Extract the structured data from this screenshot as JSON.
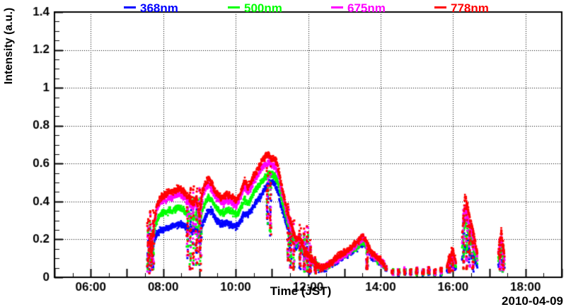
{
  "date_label": "2010-04-09",
  "legend": [
    {
      "label": "368nm",
      "color": "#0000ff"
    },
    {
      "label": "500nm",
      "color": "#00ff00"
    },
    {
      "label": "675nm",
      "color": "#ff00ff"
    },
    {
      "label": "778nm",
      "color": "#ff0000"
    }
  ],
  "axes": {
    "x_label": "Time (JST)",
    "y_label": "Intensity (a.u.)",
    "x_tick_labels": [
      "06:00",
      "08:00",
      "10:00",
      "12:00",
      "14:00",
      "16:00",
      "18:00"
    ],
    "x_tick_hours": [
      6,
      8,
      10,
      12,
      14,
      16,
      18
    ],
    "y_tick_labels": [
      "0",
      "0.2",
      "0.4",
      "0.6",
      "0.8",
      "1",
      "1.2",
      "1.4"
    ],
    "y_tick_values": [
      0,
      0.2,
      0.4,
      0.6,
      0.8,
      1,
      1.2,
      1.4
    ],
    "grid_style": "dotted",
    "axis_color": "#000000"
  },
  "chart_data": {
    "type": "scatter",
    "title": "",
    "xlabel": "Time (JST)",
    "ylabel": "Intensity (a.u.)",
    "x_unit": "decimal hours JST",
    "xlim_hours": [
      5,
      19
    ],
    "ylim": [
      0,
      1.4
    ],
    "x": [
      7.58,
      7.63,
      7.68,
      7.73,
      7.78,
      7.83,
      7.88,
      7.93,
      8.0,
      8.08,
      8.17,
      8.25,
      8.33,
      8.42,
      8.5,
      8.58,
      8.67,
      8.75,
      8.83,
      8.92,
      9.0,
      9.08,
      9.17,
      9.25,
      9.33,
      9.42,
      9.5,
      9.58,
      9.67,
      9.75,
      9.83,
      9.92,
      10.0,
      10.08,
      10.17,
      10.25,
      10.33,
      10.42,
      10.5,
      10.58,
      10.67,
      10.75,
      10.83,
      10.92,
      11.0,
      11.08,
      11.17,
      11.25,
      11.33,
      11.42,
      11.5,
      11.58,
      11.67,
      11.75,
      11.83,
      11.92,
      12.0,
      12.08,
      12.17,
      12.25,
      12.33,
      12.42,
      12.5,
      12.58,
      12.67,
      12.75,
      12.83,
      12.92,
      13.0,
      13.08,
      13.17,
      13.25,
      13.33,
      13.42,
      13.5,
      13.58,
      13.67,
      13.75,
      13.83,
      13.92,
      14.0,
      14.08,
      14.17,
      14.33,
      14.5,
      14.67,
      14.83,
      15.0,
      15.17,
      15.33,
      15.5,
      15.67,
      15.83,
      15.92,
      16.0,
      16.08,
      16.25,
      16.33,
      16.42,
      16.5,
      16.58,
      16.67,
      17.25,
      17.33,
      17.42
    ],
    "series": [
      {
        "name": "368nm",
        "color": "#0000ff",
        "column_scale": 0.75,
        "values": [
          0.08,
          0.14,
          0.09,
          0.17,
          0.21,
          0.23,
          0.24,
          0.25,
          0.25,
          0.26,
          0.26,
          0.27,
          0.27,
          0.28,
          0.28,
          0.27,
          0.26,
          0.25,
          0.24,
          0.26,
          0.2,
          0.28,
          0.32,
          0.36,
          0.35,
          0.32,
          0.3,
          0.28,
          0.28,
          0.29,
          0.28,
          0.27,
          0.27,
          0.28,
          0.31,
          0.34,
          0.33,
          0.35,
          0.38,
          0.4,
          0.42,
          0.45,
          0.47,
          0.5,
          0.5,
          0.49,
          0.45,
          0.38,
          0.33,
          0.27,
          0.23,
          0.2,
          0.16,
          0.17,
          0.14,
          0.11,
          0.1,
          0.08,
          0.07,
          0.05,
          0.04,
          0.04,
          0.05,
          0.06,
          0.07,
          0.08,
          0.09,
          0.1,
          0.11,
          0.12,
          0.13,
          0.14,
          0.15,
          0.17,
          0.18,
          0.17,
          0.14,
          0.11,
          0.1,
          0.09,
          0.07,
          0.06,
          0.04,
          0.03,
          0.03,
          0.04,
          0.03,
          0.04,
          0.03,
          0.04,
          0.03,
          0.03,
          0.04,
          0.06,
          0.07,
          0.05,
          0.1,
          0.16,
          0.14,
          0.12,
          0.1,
          0.06,
          0.06,
          0.08,
          0.05
        ]
      },
      {
        "name": "500nm",
        "color": "#00ff00",
        "column_scale": 0.85,
        "values": [
          0.09,
          0.17,
          0.1,
          0.21,
          0.27,
          0.3,
          0.32,
          0.33,
          0.34,
          0.34,
          0.35,
          0.35,
          0.36,
          0.37,
          0.36,
          0.35,
          0.34,
          0.32,
          0.31,
          0.33,
          0.26,
          0.36,
          0.4,
          0.42,
          0.41,
          0.38,
          0.36,
          0.34,
          0.34,
          0.35,
          0.35,
          0.34,
          0.33,
          0.34,
          0.38,
          0.41,
          0.39,
          0.41,
          0.45,
          0.47,
          0.49,
          0.51,
          0.53,
          0.55,
          0.54,
          0.54,
          0.5,
          0.43,
          0.37,
          0.3,
          0.26,
          0.22,
          0.18,
          0.19,
          0.16,
          0.12,
          0.11,
          0.09,
          0.07,
          0.06,
          0.05,
          0.05,
          0.05,
          0.06,
          0.07,
          0.09,
          0.1,
          0.11,
          0.12,
          0.13,
          0.14,
          0.15,
          0.16,
          0.18,
          0.19,
          0.18,
          0.15,
          0.12,
          0.11,
          0.09,
          0.08,
          0.06,
          0.05,
          0.04,
          0.04,
          0.04,
          0.04,
          0.04,
          0.04,
          0.04,
          0.03,
          0.04,
          0.05,
          0.08,
          0.1,
          0.06,
          0.15,
          0.29,
          0.24,
          0.19,
          0.15,
          0.08,
          0.1,
          0.15,
          0.08
        ]
      },
      {
        "name": "675nm",
        "color": "#ff00ff",
        "column_scale": 0.95,
        "values": [
          0.1,
          0.19,
          0.11,
          0.24,
          0.31,
          0.36,
          0.38,
          0.4,
          0.41,
          0.41,
          0.42,
          0.42,
          0.43,
          0.44,
          0.43,
          0.42,
          0.4,
          0.39,
          0.37,
          0.4,
          0.3,
          0.42,
          0.47,
          0.49,
          0.47,
          0.43,
          0.41,
          0.4,
          0.39,
          0.41,
          0.4,
          0.39,
          0.38,
          0.4,
          0.44,
          0.48,
          0.45,
          0.47,
          0.51,
          0.53,
          0.56,
          0.58,
          0.6,
          0.61,
          0.59,
          0.59,
          0.55,
          0.47,
          0.41,
          0.33,
          0.28,
          0.24,
          0.19,
          0.21,
          0.17,
          0.13,
          0.11,
          0.09,
          0.08,
          0.06,
          0.05,
          0.05,
          0.06,
          0.07,
          0.08,
          0.09,
          0.1,
          0.11,
          0.12,
          0.13,
          0.14,
          0.16,
          0.17,
          0.19,
          0.21,
          0.19,
          0.15,
          0.12,
          0.11,
          0.1,
          0.08,
          0.07,
          0.05,
          0.04,
          0.04,
          0.05,
          0.04,
          0.05,
          0.04,
          0.05,
          0.04,
          0.04,
          0.05,
          0.09,
          0.12,
          0.07,
          0.19,
          0.37,
          0.3,
          0.24,
          0.19,
          0.1,
          0.12,
          0.2,
          0.1
        ]
      },
      {
        "name": "778nm",
        "color": "#ff0000",
        "column_scale": 1.0,
        "values": [
          0.1,
          0.2,
          0.12,
          0.25,
          0.33,
          0.38,
          0.4,
          0.42,
          0.43,
          0.44,
          0.45,
          0.45,
          0.46,
          0.47,
          0.46,
          0.45,
          0.43,
          0.41,
          0.39,
          0.42,
          0.32,
          0.45,
          0.5,
          0.52,
          0.5,
          0.46,
          0.44,
          0.42,
          0.42,
          0.44,
          0.43,
          0.42,
          0.41,
          0.42,
          0.47,
          0.51,
          0.48,
          0.5,
          0.54,
          0.56,
          0.59,
          0.62,
          0.64,
          0.65,
          0.62,
          0.63,
          0.58,
          0.5,
          0.43,
          0.35,
          0.3,
          0.25,
          0.2,
          0.22,
          0.18,
          0.14,
          0.12,
          0.1,
          0.08,
          0.06,
          0.05,
          0.05,
          0.06,
          0.07,
          0.08,
          0.1,
          0.11,
          0.12,
          0.13,
          0.14,
          0.15,
          0.17,
          0.18,
          0.2,
          0.22,
          0.2,
          0.16,
          0.13,
          0.12,
          0.1,
          0.09,
          0.07,
          0.05,
          0.04,
          0.04,
          0.05,
          0.04,
          0.05,
          0.04,
          0.05,
          0.04,
          0.05,
          0.06,
          0.1,
          0.14,
          0.08,
          0.22,
          0.43,
          0.35,
          0.28,
          0.22,
          0.12,
          0.14,
          0.24,
          0.12
        ]
      }
    ],
    "noise_columns": [
      [
        7.58,
        0.02,
        0.32
      ],
      [
        7.63,
        0.02,
        0.35
      ],
      [
        7.68,
        0.03,
        0.3
      ],
      [
        7.73,
        0.04,
        0.36
      ],
      [
        8.67,
        0.08,
        0.45
      ],
      [
        8.75,
        0.04,
        0.48
      ],
      [
        8.83,
        0.04,
        0.5
      ],
      [
        8.92,
        0.06,
        0.5
      ],
      [
        9.0,
        0.04,
        0.5
      ],
      [
        9.04,
        0.03,
        0.45
      ],
      [
        10.88,
        0.28,
        0.62
      ],
      [
        10.96,
        0.22,
        0.6
      ],
      [
        11.45,
        0.08,
        0.4
      ],
      [
        11.52,
        0.05,
        0.33
      ],
      [
        11.6,
        0.04,
        0.3
      ],
      [
        11.78,
        0.04,
        0.28
      ],
      [
        11.9,
        0.03,
        0.26
      ],
      [
        11.98,
        0.02,
        0.28
      ],
      [
        12.06,
        0.02,
        0.2
      ],
      [
        12.2,
        0.02,
        0.12
      ],
      [
        13.63,
        0.04,
        0.18
      ],
      [
        15.9,
        0.02,
        0.12
      ],
      [
        15.98,
        0.02,
        0.16
      ],
      [
        16.3,
        0.04,
        0.42
      ],
      [
        16.38,
        0.04,
        0.4
      ],
      [
        16.46,
        0.04,
        0.34
      ],
      [
        16.55,
        0.03,
        0.28
      ],
      [
        17.3,
        0.03,
        0.22
      ],
      [
        17.38,
        0.03,
        0.2
      ]
    ]
  }
}
